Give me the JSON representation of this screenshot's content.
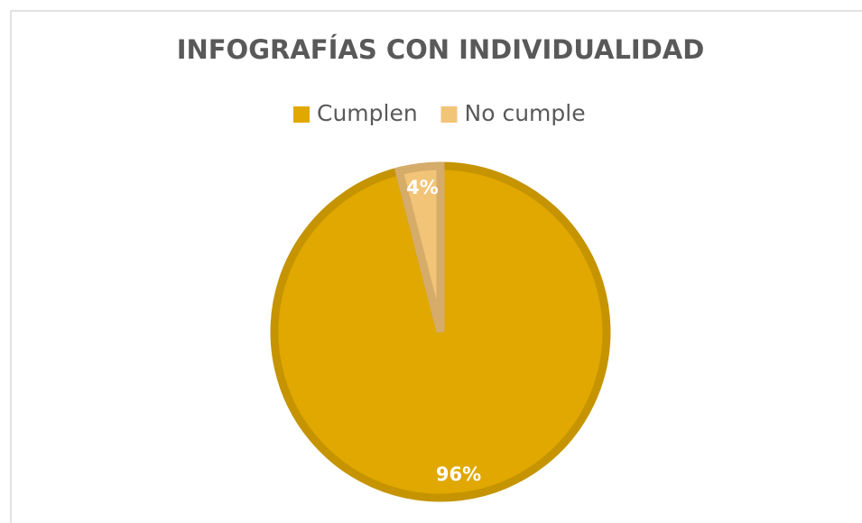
{
  "chart_data": {
    "type": "pie",
    "title": "INFOGRAFÍAS CON INDIVIDUALIDAD",
    "categories": [
      "Cumplen",
      "No cumple"
    ],
    "values": [
      96,
      4
    ],
    "value_labels": [
      "96%",
      "4%"
    ],
    "colors": [
      "#e0a800",
      "#f2c478"
    ],
    "legend": "top"
  }
}
